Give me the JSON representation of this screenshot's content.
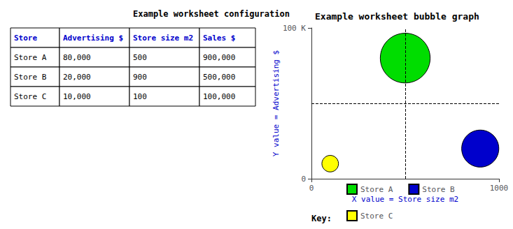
{
  "chart_data": [
    {
      "type": "table",
      "title": "Example worksheet configuration",
      "columns": [
        "Store",
        "Advertising $",
        "Store size m2",
        "Sales $"
      ],
      "rows": [
        [
          "Store A",
          "80,000",
          "500",
          "900,000"
        ],
        [
          "Store B",
          "20,000",
          "900",
          "500,000"
        ],
        [
          "Store C",
          "10,000",
          "100",
          "100,000"
        ]
      ],
      "color": "#0000cc"
    },
    {
      "type": "scatter",
      "title": "Example worksheet bubble graph",
      "xlabel": "X value = Store size m2",
      "ylabel": "Y value = Advertising $",
      "series": [
        {
          "name": "Store A",
          "color": "#00dd00",
          "x": [
            500
          ],
          "values": [
            80000
          ],
          "sizes": [
            900000
          ]
        },
        {
          "name": "Store B",
          "color": "#0000cc",
          "x": [
            900
          ],
          "values": [
            20000
          ],
          "sizes": [
            500000
          ]
        },
        {
          "name": "Store C",
          "color": "#ffff00",
          "x": [
            100
          ],
          "values": [
            10000
          ],
          "sizes": [
            100000
          ]
        }
      ],
      "vlines": [
        500
      ],
      "hlines": [
        50000
      ],
      "xlim": [
        0,
        1000
      ],
      "xticks": [
        0,
        1000
      ],
      "ylim": [
        0,
        100000
      ],
      "yticks": [
        0,
        {
          "value": 100000,
          "label": "100 K"
        }
      ],
      "grid": false,
      "legend": "bottom",
      "legend_title": "Key:"
    }
  ]
}
